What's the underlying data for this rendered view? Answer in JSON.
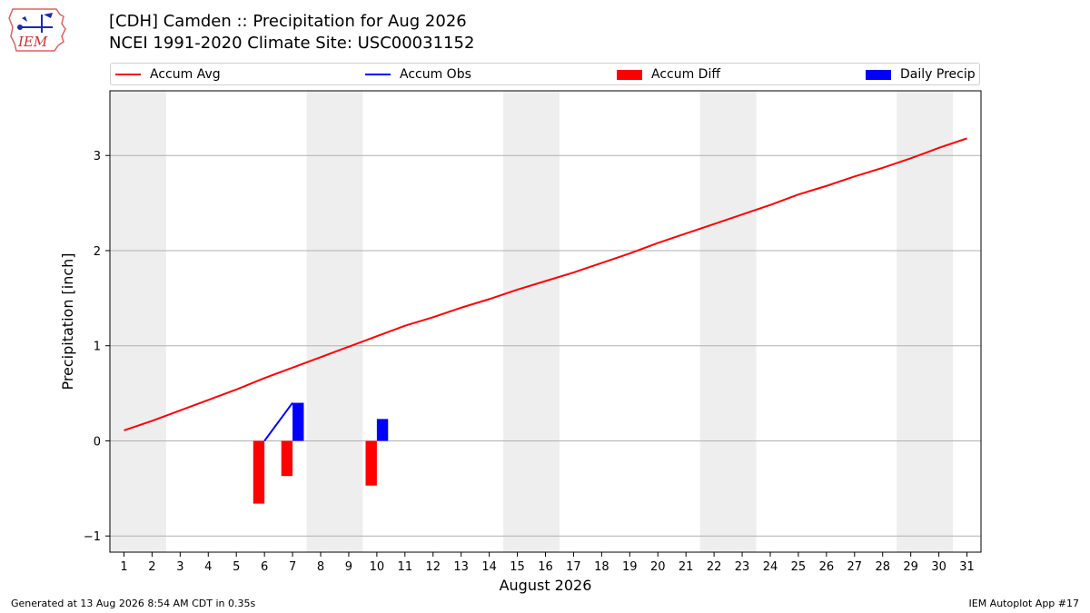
{
  "header": {
    "title_line1": "[CDH] Camden :: Precipitation for Aug 2026",
    "title_line2": "NCEI 1991-2020 Climate Site: USC00031152"
  },
  "logo": {
    "text": "IEM",
    "icon": "iem-logo-icon"
  },
  "legend": {
    "placement": "top (above plot)",
    "items": [
      {
        "label": "Accum Avg",
        "kind": "line",
        "color": "#ff0000"
      },
      {
        "label": "Accum Obs",
        "kind": "line",
        "color": "#0000ff"
      },
      {
        "label": "Accum Diff",
        "kind": "patch",
        "color": "#ff0000"
      },
      {
        "label": "Daily Precip",
        "kind": "patch",
        "color": "#0000ff"
      }
    ]
  },
  "footer": {
    "generated": "Generated at 13 Aug 2026 8:54 AM CDT in 0.35s",
    "app": "IEM Autoplot App #17"
  },
  "chart_data": {
    "type": "bar",
    "title": "[CDH] Camden :: Precipitation for Aug 2026",
    "subtitle": "NCEI 1991-2020 Climate Site: USC00031152",
    "xlabel": "August 2026",
    "ylabel": "Precipitation [inch]",
    "x_ticks": [
      1,
      2,
      3,
      4,
      5,
      6,
      7,
      8,
      9,
      10,
      11,
      12,
      13,
      14,
      15,
      16,
      17,
      18,
      19,
      20,
      21,
      22,
      23,
      24,
      25,
      26,
      27,
      28,
      29,
      30,
      31
    ],
    "y_ticks": [
      -1,
      0,
      1,
      2,
      3
    ],
    "xlim": [
      0.5,
      31.5
    ],
    "ylim": [
      -1.17,
      3.68
    ],
    "grid": "horizontal",
    "weekend_shading": [
      [
        1,
        2
      ],
      [
        8,
        9
      ],
      [
        15,
        16
      ],
      [
        22,
        23
      ],
      [
        29,
        30
      ]
    ],
    "weekend_color": "#eeeeee",
    "accum_avg": {
      "name": "Accum Avg",
      "color": "#ff0000",
      "x": [
        1,
        2,
        3,
        4,
        5,
        6,
        7,
        8,
        9,
        10,
        11,
        12,
        13,
        14,
        15,
        16,
        17,
        18,
        19,
        20,
        21,
        22,
        23,
        24,
        25,
        26,
        27,
        28,
        29,
        30,
        31
      ],
      "y": [
        0.11,
        0.21,
        0.32,
        0.43,
        0.54,
        0.66,
        0.77,
        0.88,
        0.99,
        1.1,
        1.21,
        1.3,
        1.4,
        1.49,
        1.59,
        1.68,
        1.77,
        1.87,
        1.97,
        2.08,
        2.18,
        2.28,
        2.38,
        2.48,
        2.59,
        2.68,
        2.78,
        2.87,
        2.97,
        3.08,
        3.18
      ]
    },
    "accum_obs": {
      "name": "Accum Obs",
      "color": "#0000ff",
      "x": [
        6,
        7
      ],
      "y": [
        0.0,
        0.4
      ]
    },
    "accum_diff": {
      "name": "Accum Diff",
      "color": "#ff0000",
      "x": [
        6,
        7,
        10
      ],
      "y": [
        -0.66,
        -0.37,
        -0.47
      ]
    },
    "daily_precip": {
      "name": "Daily Precip",
      "color": "#0000ff",
      "x": [
        7,
        10
      ],
      "y": [
        0.4,
        0.23
      ]
    }
  }
}
